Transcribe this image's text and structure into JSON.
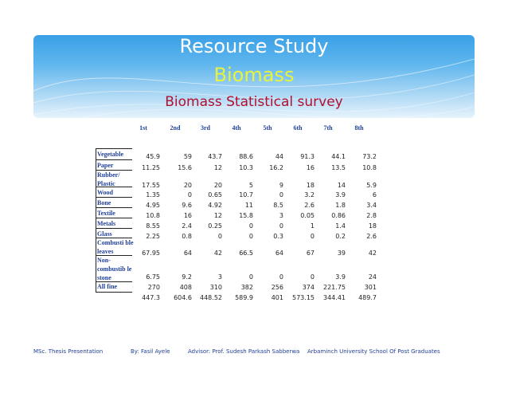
{
  "title": "Resource Study",
  "subtitle": "Biomass",
  "heading": "Biomass Statistical survey",
  "column_headers": [
    "1st",
    "2nd",
    "3rd",
    "4th",
    "5th",
    "6th",
    "7th",
    "8th"
  ],
  "rows": [
    {
      "label": "Vegetable",
      "values": [
        "45.9",
        "59",
        "43.7",
        "88.6",
        "44",
        "91.3",
        "44.1",
        "73.2"
      ]
    },
    {
      "label": "Paper",
      "values": [
        "11.25",
        "15.6",
        "12",
        "10.3",
        "16.2",
        "16",
        "13.5",
        "10.8"
      ]
    },
    {
      "label": "Rubber/ Plastic",
      "values": [
        "17.55",
        "20",
        "20",
        "5",
        "9",
        "18",
        "14",
        "5.9"
      ]
    },
    {
      "label": "Wood",
      "values": [
        "1.35",
        "0",
        "0.65",
        "10.7",
        "0",
        "3.2",
        "3.9",
        "6"
      ]
    },
    {
      "label": "Bone",
      "values": [
        "4.95",
        "9.6",
        "4.92",
        "11",
        "8.5",
        "2.6",
        "1.8",
        "3.4"
      ]
    },
    {
      "label": "Textile",
      "values": [
        "10.8",
        "16",
        "12",
        "15.8",
        "3",
        "0.05",
        "0.86",
        "2.8"
      ]
    },
    {
      "label": "Metals",
      "values": [
        "8.55",
        "2.4",
        "0.25",
        "0",
        "0",
        "1",
        "1.4",
        "18"
      ]
    },
    {
      "label": "Glass",
      "values": [
        "2.25",
        "0.8",
        "0",
        "0",
        "0.3",
        "0",
        "0.2",
        "2.6"
      ]
    },
    {
      "label": "Combusti ble leaves",
      "values": [
        "67.95",
        "64",
        "42",
        "66.5",
        "64",
        "67",
        "39",
        "42"
      ]
    },
    {
      "label": "Non- combustib le stone",
      "values": [
        "6.75",
        "9.2",
        "3",
        "0",
        "0",
        "0",
        "3.9",
        "24"
      ]
    },
    {
      "label": "All fine",
      "values": [
        "270",
        "408",
        "310",
        "382",
        "256",
        "374",
        "221.75",
        "301"
      ]
    },
    {
      "label": "",
      "values": [
        "447.3",
        "604.6",
        "448.52",
        "589.9",
        "401",
        "573.15",
        "344.41",
        "489.7"
      ]
    }
  ],
  "footer": {
    "program": "MSc. Thesis Presentation",
    "author": "By:  Fasil Ayele",
    "advisor": "Advisor: Prof. Sudesh Parkash Sabberwa",
    "institution": "Arbaminch University School Of Post Graduates"
  },
  "colors": {
    "banner_top": "#3aa0e6",
    "banner_bottom": "#e6f3fc",
    "title": "#ffffff",
    "subtitle": "#e8f43a",
    "heading": "#b2102c",
    "text_blue": "#1f3f9a"
  }
}
